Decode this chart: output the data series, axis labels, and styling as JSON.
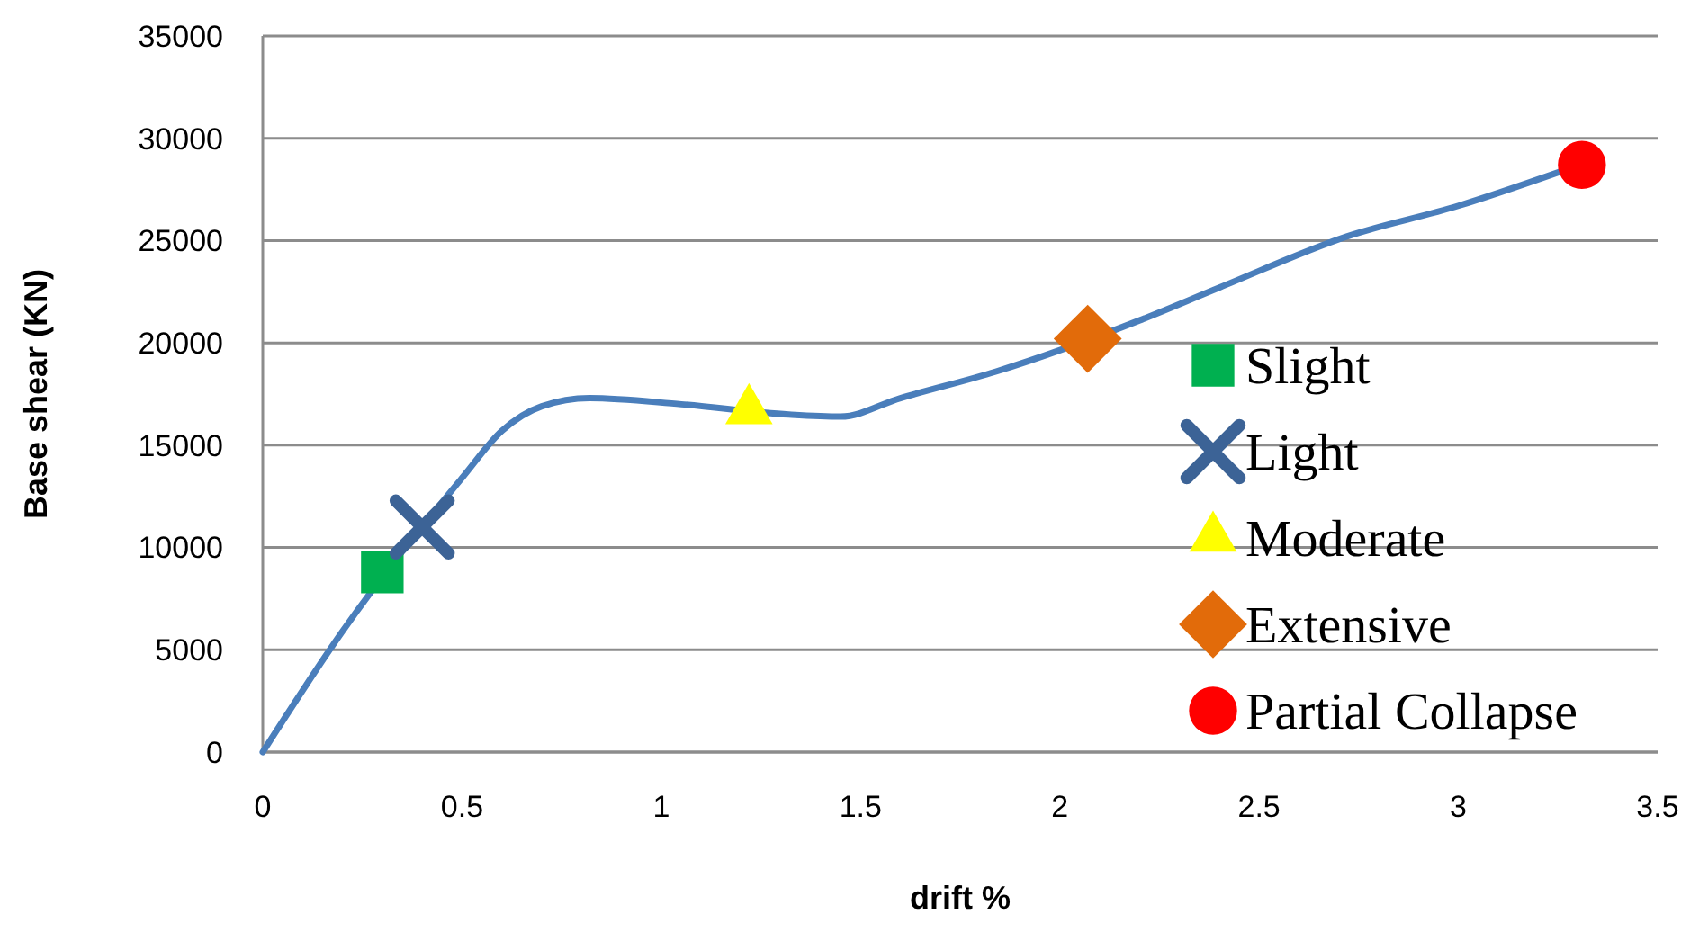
{
  "chart_data": {
    "type": "line",
    "xlabel": "drift %",
    "ylabel": "Base shear (KN)",
    "xlim": [
      0,
      3.5
    ],
    "xticks": [
      0,
      0.5,
      1,
      1.5,
      2,
      2.5,
      3,
      3.5
    ],
    "ylim": [
      0,
      35000
    ],
    "yticks": [
      0,
      5000,
      10000,
      15000,
      20000,
      25000,
      30000,
      35000
    ],
    "grid": "y",
    "legend": "right",
    "marker": "none",
    "line_style": "solid",
    "series": [
      {
        "color": "#4a7ebb",
        "x": [
          0,
          0.2,
          0.5,
          0.6,
          0.7,
          0.82,
          1.05,
          1.32,
          1.45,
          1.6,
          1.84,
          2.2,
          2.4,
          2.72,
          3.0,
          3.26
        ],
        "values": [
          0,
          5900,
          13400,
          15700,
          16900,
          17300,
          17000,
          16500,
          16400,
          17300,
          18600,
          21100,
          22700,
          25200,
          26700,
          28400
        ]
      },
      {
        "type": "scatter",
        "name": "Slight",
        "color": "#00b050",
        "marker": "square",
        "x": [
          0.3
        ],
        "values": [
          8800
        ]
      },
      {
        "type": "scatter",
        "name": "Light",
        "color": "#3c6396",
        "marker": "cross",
        "x": [
          0.4
        ],
        "values": [
          11000
        ]
      },
      {
        "type": "scatter",
        "name": "Moderate",
        "color": "#ffff00",
        "marker": "triangle",
        "x": [
          1.22
        ],
        "values": [
          16700
        ]
      },
      {
        "type": "scatter",
        "name": "Extensive",
        "color": "#e26b0a",
        "marker": "diamond",
        "x": [
          2.07
        ],
        "values": [
          20200
        ]
      },
      {
        "type": "scatter",
        "name": "Partial Collapse",
        "color": "#ff0000",
        "marker": "circle",
        "x": [
          3.31
        ],
        "values": [
          28700
        ]
      }
    ]
  }
}
